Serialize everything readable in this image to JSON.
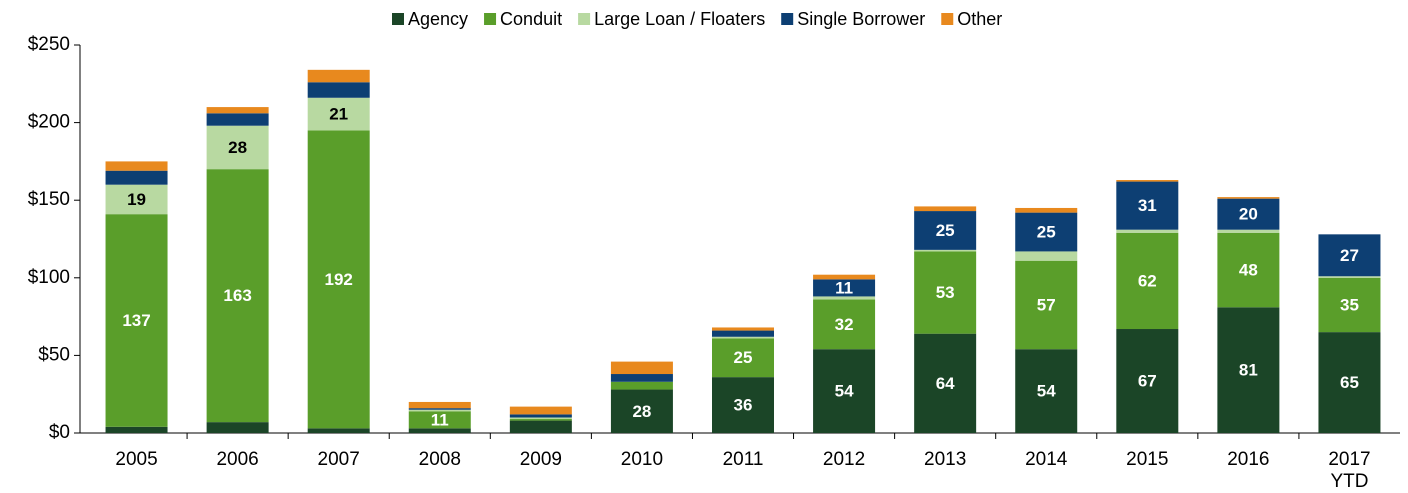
{
  "chart_data": {
    "type": "stacked_bar",
    "categories": [
      "2005",
      "2006",
      "2007",
      "2008",
      "2009",
      "2010",
      "2011",
      "2012",
      "2013",
      "2014",
      "2015",
      "2016",
      "2017 YTD"
    ],
    "series": [
      {
        "name": "Agency",
        "color": "#1b4527",
        "values": [
          4,
          7,
          3,
          3,
          8,
          28,
          36,
          54,
          64,
          54,
          67,
          81,
          65
        ]
      },
      {
        "name": "Conduit",
        "color": "#5a9e2a",
        "values": [
          137,
          163,
          192,
          11,
          1,
          5,
          25,
          32,
          53,
          57,
          62,
          48,
          35
        ]
      },
      {
        "name": "Large Loan / Floaters",
        "color": "#b8d9a1",
        "values": [
          19,
          28,
          21,
          1,
          1,
          0,
          1,
          2,
          1,
          6,
          2,
          2,
          1
        ]
      },
      {
        "name": "Single Borrower",
        "color": "#0d3f73",
        "values": [
          9,
          8,
          10,
          1,
          2,
          5,
          4,
          11,
          25,
          25,
          31,
          20,
          27
        ]
      },
      {
        "name": "Other",
        "color": "#e8891e",
        "values": [
          6,
          4,
          8,
          4,
          5,
          8,
          2,
          3,
          3,
          3,
          1,
          1,
          0
        ]
      }
    ],
    "ylim": [
      0,
      250
    ],
    "yticks": [
      {
        "value": 0,
        "label": "$0"
      },
      {
        "value": 50,
        "label": "$50"
      },
      {
        "value": 100,
        "label": "$100"
      },
      {
        "value": 150,
        "label": "$150"
      },
      {
        "value": 200,
        "label": "$200"
      },
      {
        "value": 250,
        "label": "$250"
      }
    ],
    "legend": "top"
  }
}
